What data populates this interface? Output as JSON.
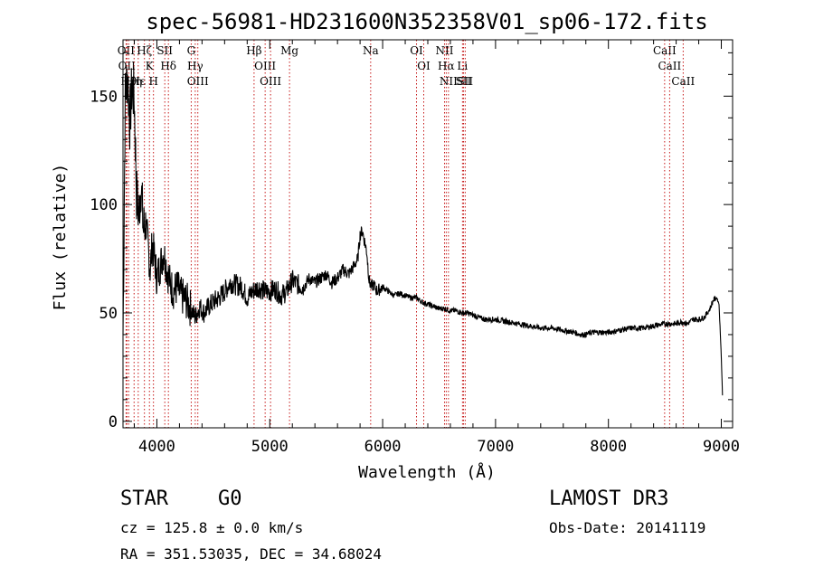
{
  "chart_data": {
    "type": "line",
    "title": "spec-56981-HD231600N352358V01_sp06-172.fits",
    "xlabel": "Wavelength (Å)",
    "ylabel": "Flux (relative)",
    "xlim": [
      3700,
      9100
    ],
    "ylim": [
      -3,
      176
    ],
    "xticks": [
      4000,
      5000,
      6000,
      7000,
      8000,
      9000
    ],
    "yticks": [
      0,
      50,
      100,
      150
    ],
    "grid": false,
    "series": [
      {
        "name": "flux",
        "x": [
          3700,
          3720,
          3740,
          3760,
          3780,
          3800,
          3820,
          3840,
          3860,
          3880,
          3900,
          3920,
          3940,
          3960,
          3980,
          4000,
          4030,
          4060,
          4090,
          4120,
          4150,
          4180,
          4210,
          4240,
          4270,
          4300,
          4340,
          4380,
          4420,
          4460,
          4500,
          4550,
          4600,
          4650,
          4700,
          4750,
          4800,
          4850,
          4900,
          4950,
          5000,
          5050,
          5100,
          5150,
          5200,
          5250,
          5300,
          5350,
          5400,
          5450,
          5500,
          5550,
          5600,
          5650,
          5700,
          5750,
          5780,
          5800,
          5820,
          5840,
          5860,
          5880,
          5900,
          5920,
          5950,
          6000,
          6050,
          6100,
          6150,
          6200,
          6250,
          6300,
          6350,
          6400,
          6450,
          6500,
          6550,
          6600,
          6650,
          6700,
          6750,
          6800,
          6850,
          6900,
          6950,
          7000,
          7100,
          7200,
          7300,
          7400,
          7500,
          7600,
          7700,
          7750,
          7800,
          7850,
          7900,
          8000,
          8100,
          8200,
          8300,
          8400,
          8500,
          8550,
          8600,
          8650,
          8700,
          8750,
          8800,
          8850,
          8900,
          8930,
          8960,
          8980,
          9000,
          9010
        ],
        "y": [
          40,
          150,
          160,
          138,
          155,
          148,
          105,
          95,
          110,
          88,
          92,
          82,
          70,
          82,
          75,
          66,
          72,
          78,
          70,
          63,
          60,
          62,
          58,
          57,
          55,
          52,
          48,
          53,
          50,
          53,
          55,
          57,
          60,
          64,
          63,
          62,
          57,
          60,
          62,
          60,
          60,
          61,
          58,
          60,
          65,
          63,
          62,
          66,
          64,
          66,
          68,
          64,
          66,
          70,
          68,
          72,
          75,
          86,
          88,
          83,
          78,
          65,
          62,
          63,
          60,
          62,
          60,
          58,
          59,
          58,
          57,
          57,
          55,
          54,
          53,
          52,
          52,
          51,
          51,
          50,
          50,
          49,
          48,
          47,
          47,
          47,
          46,
          45,
          44,
          43,
          43,
          42,
          41,
          40,
          40,
          41,
          41,
          41,
          42,
          43,
          43,
          44,
          45,
          45,
          45,
          46,
          45,
          47,
          47,
          48,
          52,
          56,
          57,
          54,
          30,
          12
        ]
      }
    ],
    "line_annotations": [
      {
        "wl": 3727,
        "label": "OII"
      },
      {
        "wl": 3734,
        "label": "OII"
      },
      {
        "wl": 3750,
        "label": "Hθ"
      },
      {
        "wl": 3798,
        "label": "Hη"
      },
      {
        "wl": 3835,
        "label": "Hε"
      },
      {
        "wl": 3890,
        "label": "Hζ"
      },
      {
        "wl": 3934,
        "label": "K"
      },
      {
        "wl": 3970,
        "label": "H"
      },
      {
        "wl": 4070,
        "label": "SII"
      },
      {
        "wl": 4102,
        "label": "Hδ"
      },
      {
        "wl": 4304,
        "label": "G"
      },
      {
        "wl": 4340,
        "label": "Hγ"
      },
      {
        "wl": 4363,
        "label": "OIII"
      },
      {
        "wl": 4861,
        "label": "Hβ"
      },
      {
        "wl": 4959,
        "label": "OIII"
      },
      {
        "wl": 5007,
        "label": "OIII"
      },
      {
        "wl": 5175,
        "label": "Mg"
      },
      {
        "wl": 5894,
        "label": "Na"
      },
      {
        "wl": 6300,
        "label": "OI"
      },
      {
        "wl": 6364,
        "label": "OI"
      },
      {
        "wl": 6548,
        "label": "NII"
      },
      {
        "wl": 6563,
        "label": "Hα"
      },
      {
        "wl": 6583,
        "label": "NII"
      },
      {
        "wl": 6707,
        "label": "Li"
      },
      {
        "wl": 6716,
        "label": "SII"
      },
      {
        "wl": 6731,
        "label": "SII"
      },
      {
        "wl": 8498,
        "label": "CaII"
      },
      {
        "wl": 8542,
        "label": "CaII"
      },
      {
        "wl": 8662,
        "label": "CaII"
      }
    ]
  },
  "info": {
    "class": "STAR",
    "subclass": "G0",
    "survey": "LAMOST DR3",
    "cz": "cz = 125.8 ± 0.0 km/s",
    "obs_date": "Obs-Date: 20141119",
    "radec": "RA = 351.53035, DEC =  34.68024"
  }
}
